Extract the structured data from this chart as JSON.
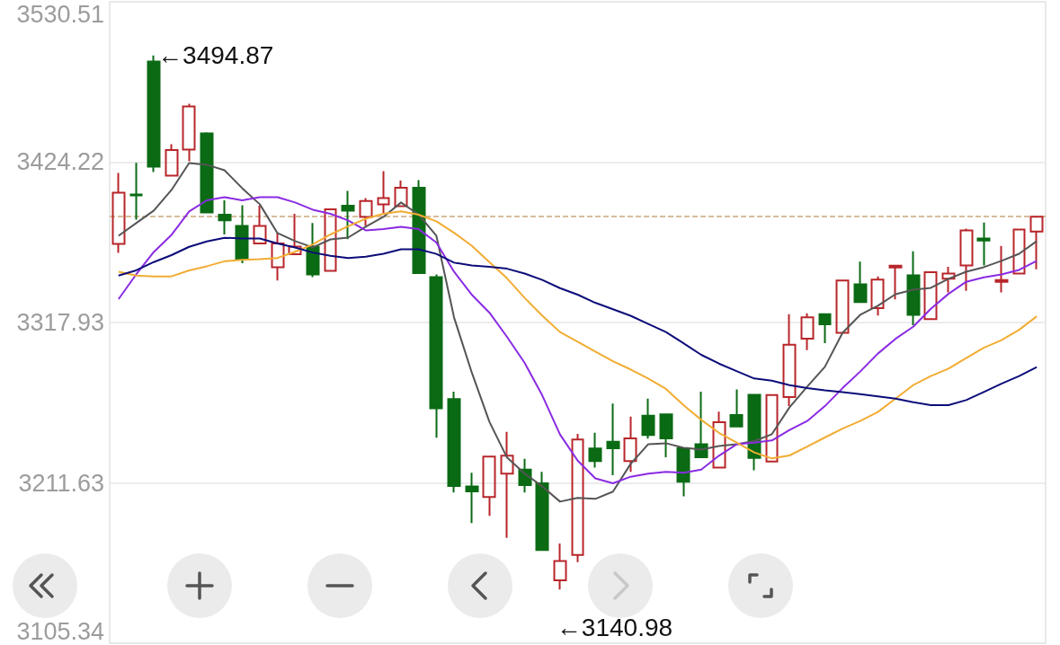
{
  "chart_data": {
    "type": "candlestick",
    "categories": [
      null,
      null,
      null,
      null,
      null,
      null,
      null,
      null,
      null,
      null,
      null,
      null,
      null,
      null,
      null,
      null,
      null,
      null,
      null,
      null,
      null,
      null,
      null,
      null,
      null,
      null,
      null,
      null,
      null,
      null,
      null,
      null,
      null,
      null,
      null,
      null,
      null,
      null,
      null,
      null,
      null,
      null,
      null,
      null,
      null,
      null,
      null,
      null,
      null,
      null,
      null,
      null,
      null
    ],
    "ohlc": [
      [
        3370.1,
        3417.1,
        3364.1,
        3404.0
      ],
      [
        3402.8,
        3423.7,
        3386.1,
        3402.2
      ],
      [
        3490.9,
        3494.87,
        3417.7,
        3421.3
      ],
      [
        3415.3,
        3436.2,
        3414.9,
        3432.3
      ],
      [
        3432.6,
        3462.9,
        3424.8,
        3461.2
      ],
      [
        3443.3,
        3444.0,
        3390.4,
        3390.9
      ],
      [
        3389.4,
        3398.9,
        3376.3,
        3385.6
      ],
      [
        3382.0,
        3395.7,
        3357.3,
        3359.9
      ],
      [
        3370.4,
        3395.4,
        3369.9,
        3382.0
      ],
      [
        3354.6,
        3377.2,
        3345.7,
        3370.4
      ],
      [
        3363.2,
        3390.0,
        3362.8,
        3368.3
      ],
      [
        3368.3,
        3383.8,
        3348.0,
        3349.8
      ],
      [
        3352.2,
        3393.5,
        3351.8,
        3393.0
      ],
      [
        3395.4,
        3405.2,
        3373.1,
        3392.1
      ],
      [
        3387.9,
        3400.4,
        3382.0,
        3398.4
      ],
      [
        3396.3,
        3418.3,
        3389.4,
        3400.4
      ],
      [
        3395.1,
        3412.0,
        3394.7,
        3407.3
      ],
      [
        3407.3,
        3412.3,
        3350.3,
        3350.7
      ],
      [
        3348.0,
        3349.8,
        3241.5,
        3261.1
      ],
      [
        3267.1,
        3272.1,
        3205.3,
        3209.6
      ],
      [
        3209.2,
        3218.3,
        3185.0,
        3206.0
      ],
      [
        3202.2,
        3229.4,
        3189.7,
        3229.0
      ],
      [
        3217.8,
        3245.4,
        3175.1,
        3229.6
      ],
      [
        3220.4,
        3227.5,
        3205.3,
        3210.2
      ],
      [
        3211.3,
        3218.9,
        3166.7,
        3167.1
      ],
      [
        3147.0,
        3171.4,
        3140.98,
        3159.9
      ],
      [
        3163.9,
        3244.1,
        3159.1,
        3240.4
      ],
      [
        3234.4,
        3244.8,
        3221.7,
        3226.0
      ],
      [
        3238.9,
        3264.2,
        3216.7,
        3234.6
      ],
      [
        3226.0,
        3255.5,
        3218.9,
        3241.1
      ],
      [
        3256.2,
        3267.4,
        3240.9,
        3243.3
      ],
      [
        3257.0,
        3257.6,
        3228.6,
        3241.1
      ],
      [
        3234.6,
        3235.0,
        3202.7,
        3212.4
      ],
      [
        3237.2,
        3272.1,
        3228.2,
        3228.6
      ],
      [
        3221.7,
        3258.8,
        3221.3,
        3251.8
      ],
      [
        3256.6,
        3273.5,
        3248.6,
        3249.0
      ],
      [
        3270.0,
        3270.4,
        3220.0,
        3228.1
      ],
      [
        3225.8,
        3270.3,
        3225.4,
        3269.9
      ],
      [
        3268.5,
        3323.5,
        3262.5,
        3303.2
      ],
      [
        3307.2,
        3324.1,
        3299.6,
        3321.4
      ],
      [
        3323.5,
        3323.9,
        3304.2,
        3316.7
      ],
      [
        3311.1,
        3346.2,
        3310.7,
        3345.8
      ],
      [
        3343.3,
        3358.3,
        3331.0,
        3331.4
      ],
      [
        3327.4,
        3348.5,
        3322.6,
        3346.4
      ],
      [
        3354.4,
        3356.0,
        3333.3,
        3355.6
      ],
      [
        3349.2,
        3365.1,
        3316.1,
        3323.0
      ],
      [
        3320.1,
        3351.6,
        3319.7,
        3351.2
      ],
      [
        3346.9,
        3354.8,
        3337.9,
        3350.4
      ],
      [
        3355.8,
        3380.2,
        3338.9,
        3379.0
      ],
      [
        3373.6,
        3384.2,
        3355.8,
        3372.3
      ],
      [
        3344.9,
        3368.7,
        3337.9,
        3346.1
      ],
      [
        3350.4,
        3380.0,
        3350.0,
        3379.6
      ],
      [
        3378.2,
        3388.5,
        3353.2,
        3388.1
      ]
    ],
    "series": [
      {
        "type": "line",
        "color": "#555555",
        "values": [
          3375.4,
          3383.8,
          3392.1,
          3405.8,
          3423.6,
          3422.5,
          3418.9,
          3407.0,
          3396.3,
          3377.2,
          3371.9,
          3367.7,
          3373.0,
          3374.2,
          3381.4,
          3387.9,
          3397.5,
          3389.4,
          3375.4,
          3321.3,
          3284.9,
          3252.2,
          3228.4,
          3217.7,
          3209.3,
          3199.2,
          3201.6,
          3201.0,
          3205.8,
          3224.2,
          3237.3,
          3237.9,
          3234.9,
          3233.7,
          3236.1,
          3237.3,
          3239.3,
          3243.9,
          3261.7,
          3275.4,
          3288.5,
          3311.1,
          3323.0,
          3329.0,
          3336.7,
          3339.7,
          3340.9,
          3346.9,
          3351.6,
          3354.6,
          3358.8,
          3363.5,
          3371.9
        ]
      },
      {
        "type": "line",
        "color": "#8a2be2",
        "values": [
          3333.4,
          3349.8,
          3364.7,
          3376.0,
          3391.5,
          3398.9,
          3401.0,
          3398.9,
          3401.0,
          3401.0,
          3397.5,
          3392.7,
          3390.0,
          3385.6,
          3379.0,
          3379.8,
          3381.4,
          3379.8,
          3370.9,
          3351.6,
          3336.4,
          3324.5,
          3308.4,
          3291.1,
          3269.5,
          3243.7,
          3226.4,
          3214.6,
          3211.3,
          3215.7,
          3217.8,
          3218.9,
          3218.3,
          3220.4,
          3229.6,
          3237.2,
          3238.3,
          3239.7,
          3246.7,
          3252.6,
          3262.5,
          3274.4,
          3285.4,
          3297.3,
          3307.1,
          3315.1,
          3327.0,
          3336.9,
          3344.9,
          3347.9,
          3349.8,
          3352.8,
          3358.8
        ]
      },
      {
        "type": "line",
        "color": "#f2ac33",
        "values": [
          3351.6,
          3349.0,
          3348.5,
          3348.5,
          3352.5,
          3355.2,
          3358.5,
          3359.4,
          3359.9,
          3360.7,
          3364.8,
          3369.7,
          3376.3,
          3381.7,
          3386.7,
          3390.0,
          3391.6,
          3389.4,
          3385.0,
          3377.4,
          3368.8,
          3358.0,
          3347.2,
          3334.2,
          3322.4,
          3311.6,
          3305.2,
          3298.6,
          3292.2,
          3286.8,
          3280.8,
          3273.9,
          3263.1,
          3253.4,
          3244.8,
          3238.3,
          3231.8,
          3227.8,
          3229.8,
          3235.7,
          3241.7,
          3247.6,
          3252.6,
          3258.6,
          3267.5,
          3276.4,
          3282.4,
          3287.3,
          3294.3,
          3301.2,
          3306.2,
          3313.1,
          3322.0
        ]
      },
      {
        "type": "line",
        "color": "#0c0c7a",
        "values": [
          3349.0,
          3352.5,
          3358.0,
          3362.6,
          3368.1,
          3371.7,
          3374.1,
          3373.6,
          3373.6,
          3370.3,
          3367.6,
          3364.3,
          3362.1,
          3360.7,
          3361.6,
          3363.5,
          3366.5,
          3366.5,
          3363.4,
          3357.6,
          3355.8,
          3354.8,
          3353.6,
          3350.4,
          3346.1,
          3340.7,
          3336.4,
          3331.0,
          3326.7,
          3322.4,
          3317.0,
          3311.6,
          3304.1,
          3296.5,
          3290.7,
          3285.7,
          3280.8,
          3279.4,
          3276.4,
          3274.4,
          3272.9,
          3271.8,
          3270.5,
          3269.0,
          3267.5,
          3265.1,
          3263.1,
          3263.1,
          3266.5,
          3271.8,
          3277.4,
          3282.4,
          3288.4
        ]
      }
    ],
    "ylim": [
      3105.34,
      3530.51
    ],
    "yticks": [
      3105.34,
      3211.63,
      3317.93,
      3424.22,
      3530.51
    ],
    "grid": "y",
    "tick_labels": "y",
    "ref_lines": [
      {
        "axis": "y",
        "value": 3388.1,
        "color": "#c9a97c",
        "line_style": "dashed"
      }
    ],
    "annotations": [
      "←3494.87",
      "←3140.98"
    ]
  }
}
